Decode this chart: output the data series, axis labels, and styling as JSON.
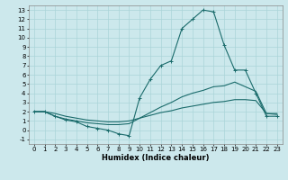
{
  "xlabel": "Humidex (Indice chaleur)",
  "ylabel": "",
  "bg_color": "#cce8ec",
  "grid_color": "#aad4d8",
  "line_color": "#1a6b6b",
  "xlim": [
    -0.5,
    23.5
  ],
  "ylim": [
    -1.5,
    13.5
  ],
  "xticks": [
    0,
    1,
    2,
    3,
    4,
    5,
    6,
    7,
    8,
    9,
    10,
    11,
    12,
    13,
    14,
    15,
    16,
    17,
    18,
    19,
    20,
    21,
    22,
    23
  ],
  "yticks": [
    -1,
    0,
    1,
    2,
    3,
    4,
    5,
    6,
    7,
    8,
    9,
    10,
    11,
    12,
    13
  ],
  "line_main_x": [
    0,
    1,
    2,
    3,
    4,
    5,
    6,
    7,
    8,
    9,
    10,
    11,
    12,
    13,
    14,
    15,
    16,
    17,
    18,
    19,
    20,
    21,
    22,
    23
  ],
  "line_main_y": [
    2.0,
    2.0,
    1.5,
    1.1,
    0.9,
    0.4,
    0.2,
    0.0,
    -0.4,
    -0.6,
    3.5,
    5.5,
    7.0,
    7.5,
    11.0,
    12.0,
    13.0,
    12.8,
    9.2,
    6.5,
    6.5,
    4.0,
    1.5,
    1.5
  ],
  "line_upper_x": [
    0,
    1,
    2,
    3,
    4,
    5,
    6,
    7,
    8,
    9,
    10,
    11,
    12,
    13,
    14,
    15,
    16,
    17,
    18,
    19,
    20,
    21,
    22,
    23
  ],
  "line_upper_y": [
    2.0,
    2.0,
    1.5,
    1.2,
    1.0,
    0.8,
    0.7,
    0.6,
    0.6,
    0.7,
    1.3,
    1.9,
    2.5,
    3.0,
    3.6,
    4.0,
    4.3,
    4.7,
    4.8,
    5.2,
    4.7,
    4.2,
    1.8,
    1.8
  ],
  "line_lower_x": [
    0,
    1,
    2,
    3,
    4,
    5,
    6,
    7,
    8,
    9,
    10,
    11,
    12,
    13,
    14,
    15,
    16,
    17,
    18,
    19,
    20,
    21,
    22,
    23
  ],
  "line_lower_y": [
    2.0,
    2.0,
    1.8,
    1.5,
    1.3,
    1.1,
    1.0,
    0.9,
    0.9,
    1.0,
    1.3,
    1.6,
    1.9,
    2.1,
    2.4,
    2.6,
    2.8,
    3.0,
    3.1,
    3.3,
    3.3,
    3.2,
    1.8,
    1.7
  ]
}
